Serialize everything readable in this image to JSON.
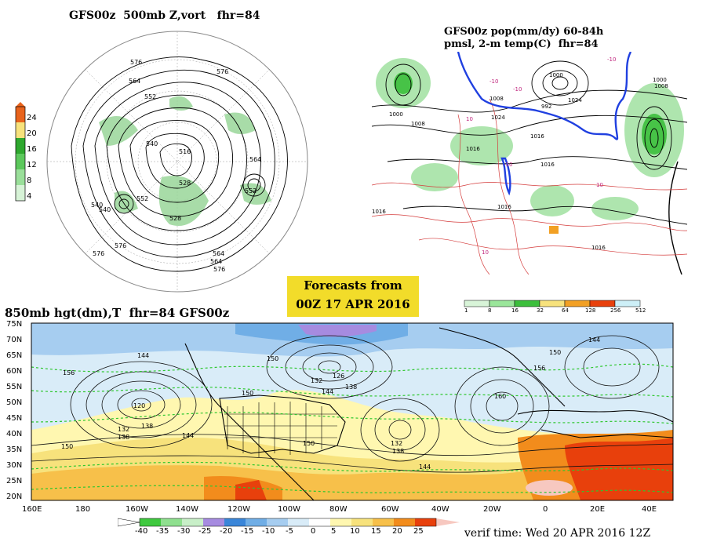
{
  "titles": {
    "top_left": "GFS00z  500mb Z,vort   fhr=84",
    "top_right_line1": "GFS00z pop(mm/dy) 60-84h",
    "top_right_line2": "pmsl, 2-m temp(C)  fhr=84",
    "bottom": "850mb hgt(dm),T  fhr=84 GFS00z"
  },
  "forecast_box": {
    "line1": "Forecasts from",
    "line2": "00Z 17 APR 2016"
  },
  "verif_time": "verif time: Wed 20 APR 2016 12Z",
  "vort_legend": {
    "labels": [
      "24",
      "20",
      "16",
      "12",
      "8",
      "4"
    ],
    "colors": [
      "#e8631c",
      "#f7e27c",
      "#2fa82f",
      "#5cc85c",
      "#9adf9a",
      "#d7f3d7"
    ]
  },
  "pop_legend": {
    "labels": [
      "1",
      "8",
      "16",
      "32",
      "64",
      "128",
      "256",
      "512"
    ],
    "colors": [
      "#d8f4d8",
      "#9ae69a",
      "#3cbf3c",
      "#f7e27c",
      "#f2a024",
      "#e8400c",
      "#cdeff7"
    ]
  },
  "temp_legend": {
    "labels": [
      "-40",
      "-35",
      "-30",
      "-25",
      "-20",
      "-15",
      "-10",
      "-5",
      "0",
      "5",
      "10",
      "15",
      "20",
      "25"
    ],
    "colors": [
      "#3fc93f",
      "#8fe08f",
      "#c8efc8",
      "#a68be0",
      "#3a86d9",
      "#70aee6",
      "#a6cdf0",
      "#d9ecf8",
      "#ffffff",
      "#fff7b0",
      "#f7e27c",
      "#f7c04a",
      "#f28c1c",
      "#e8400c",
      "#f7c8c0"
    ]
  },
  "bottom_map": {
    "lat_labels": [
      "75N",
      "70N",
      "65N",
      "60N",
      "55N",
      "50N",
      "45N",
      "40N",
      "35N",
      "30N",
      "25N",
      "20N"
    ],
    "lon_labels": [
      "160E",
      "180",
      "160W",
      "140W",
      "120W",
      "100W",
      "80W",
      "60W",
      "40W",
      "20W",
      "0",
      "20E",
      "40E"
    ],
    "contour_labels": [
      "120",
      "132",
      "138",
      "144",
      "150",
      "156",
      "126",
      "132",
      "138",
      "144",
      "150",
      "132",
      "138",
      "144",
      "150",
      "156",
      "150",
      "144",
      "150",
      "160",
      "138",
      "144"
    ]
  },
  "top_left_map": {
    "contour_labels": [
      "576",
      "564",
      "552",
      "540",
      "528",
      "516",
      "576",
      "564",
      "552",
      "540",
      "564",
      "576",
      "528",
      "540",
      "552",
      "564",
      "576",
      "576"
    ]
  },
  "top_right_map": {
    "pressure_labels": [
      "1000",
      "1008",
      "1016",
      "1016",
      "1016",
      "1016",
      "1016",
      "1000",
      "1008",
      "1024",
      "992",
      "1024",
      "1008",
      "1000",
      "1016"
    ],
    "temp_labels": [
      "-10",
      "-10",
      "-10",
      "10",
      "10",
      "10",
      "-10"
    ]
  }
}
